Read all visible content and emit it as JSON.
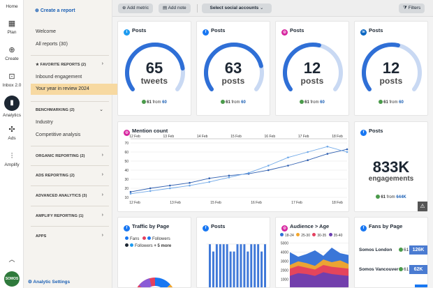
{
  "rail": {
    "home": "Home",
    "plan": "Plan",
    "create": "Create",
    "inbox": "Inbox 2.0",
    "analytics": "Analytics",
    "ads": "Ads",
    "amplify": "Amplify",
    "logo": "SOMOS"
  },
  "sidebar": {
    "create_report": "Create a report",
    "welcome": "Welcome",
    "all_reports": "All reports (30)",
    "favorite_reports": "FAVORITE REPORTS (2)",
    "inbound_engagement": "Inbound engagement",
    "year_in_review": "Your year in review 2024",
    "benchmarking": "BENCHMARKING (2)",
    "industry": "Industry",
    "competitive_analysis": "Competitive analysis",
    "organic_reporting": "ORGANIC REPORTING (2)",
    "ads_reporting": "ADS REPORTING (2)",
    "advanced_analytics": "ADVANCED ANALYTICS (3)",
    "amplify_reporting": "AMPLIFY REPORTING (1)",
    "apps": "APPS",
    "analytic_settings": "Analytic Settings"
  },
  "toolbar": {
    "add_metric": "Add metric",
    "add_note": "Add note",
    "select_accounts": "Select social accounts",
    "filters": "Filters"
  },
  "cards": {
    "twitter": {
      "title": "Posts",
      "value": "65",
      "unit": "tweets",
      "badge": "61",
      "from_label": "from",
      "from_value": "60",
      "gauge_fill": 0.82
    },
    "facebook": {
      "title": "Posts",
      "value": "63",
      "unit": "posts",
      "badge": "61",
      "from_label": "from",
      "from_value": "60",
      "gauge_fill": 0.8
    },
    "instagram": {
      "title": "Posts",
      "value": "12",
      "unit": "posts",
      "badge": "61",
      "from_label": "from",
      "from_value": "60",
      "gauge_fill": 0.55
    },
    "linkedin": {
      "title": "Posts",
      "value": "12",
      "unit": "posts",
      "badge": "61",
      "from_label": "from",
      "from_value": "60",
      "gauge_fill": 0.55
    },
    "mention": {
      "title": "Mention count"
    },
    "engagements": {
      "title": "Posts",
      "value": "833K",
      "unit": "engagements",
      "badge": "61",
      "from_label": "from",
      "from_value": "644K"
    },
    "traffic": {
      "title": "Traffic by Page",
      "fans": "Fans",
      "followers": "Followers",
      "followers2": "Followers",
      "more": "+ 5 more"
    },
    "fb_posts": {
      "title": "Posts"
    },
    "audience": {
      "title": "Audience > Age",
      "groups": [
        "18-24",
        "25-30",
        "30-35",
        "35-40"
      ]
    },
    "fans": {
      "title": "Fans by Page",
      "rows": [
        {
          "name": "Somos London",
          "change": "61",
          "value": "126K"
        },
        {
          "name": "Somos Vancouver",
          "change": "61",
          "value": "62K"
        }
      ]
    }
  },
  "colors": {
    "twitter": "#1d9bf0",
    "facebook": "#1877f2",
    "instagram": "#d6249f",
    "linkedin": "#0a66c2",
    "gauge_blue": "#2f6fd6",
    "active_item": "#f7d9a1"
  },
  "chart_data": [
    {
      "type": "line",
      "title": "Mention count",
      "x_top": [
        "12 Feb",
        "13 Feb",
        "14 Feb",
        "15 Feb",
        "16 Feb",
        "17 Feb",
        "18 Feb"
      ],
      "x_bottom": [
        "12 Feb",
        "13 Feb",
        "15 Feb",
        "16 Feb",
        "17 Feb",
        "18 Feb"
      ],
      "yticks": [
        10,
        20,
        30,
        40,
        50,
        60,
        70
      ],
      "ylim": [
        10,
        70
      ],
      "series": [
        {
          "values": [
            16,
            20,
            23,
            26,
            31,
            34,
            36,
            40,
            45,
            51,
            58,
            63
          ]
        },
        {
          "values": [
            14,
            17,
            20,
            23,
            27,
            32,
            37,
            45,
            54,
            60,
            66,
            60
          ]
        }
      ]
    },
    {
      "type": "bar",
      "title": "Posts",
      "values": [
        6,
        5,
        6,
        6,
        6,
        6,
        5,
        5,
        6,
        6,
        6,
        5,
        6,
        6,
        6,
        5,
        6
      ],
      "ylim": [
        0,
        6
      ]
    },
    {
      "type": "area",
      "title": "Audience > Age",
      "yticks": [
        1000,
        2000,
        3000,
        4000,
        5000
      ],
      "series": [
        {
          "name": "18-24",
          "values": [
            4000,
            3500,
            3800,
            4200,
            3600,
            4500,
            3900,
            3700
          ]
        },
        {
          "name": "25-30",
          "values": [
            2600,
            3000,
            2800,
            2500,
            3200,
            2900,
            3100,
            2700
          ]
        },
        {
          "name": "30-35",
          "values": [
            2200,
            2500,
            2300,
            2100,
            2600,
            2400,
            2300,
            2200
          ]
        },
        {
          "name": "35-40",
          "values": [
            1400,
            1700,
            1600,
            1400,
            1800,
            1600,
            1500,
            1400
          ]
        }
      ]
    }
  ]
}
